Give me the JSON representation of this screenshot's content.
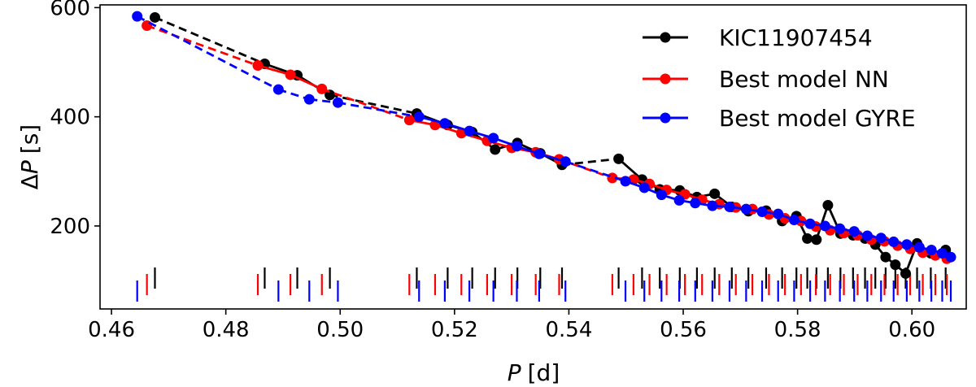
{
  "chart_data": {
    "type": "line",
    "xlabel": {
      "var": "P",
      "unit": "[d]"
    },
    "ylabel": {
      "prefix": "Δ",
      "var": "P",
      "unit": "[s]"
    },
    "xlim": [
      0.458,
      0.6095
    ],
    "ylim": [
      48,
      605
    ],
    "xticks": [
      0.46,
      0.48,
      0.5,
      0.52,
      0.54,
      0.56,
      0.58,
      0.6
    ],
    "xtick_labels": [
      "0.46",
      "0.48",
      "0.50",
      "0.52",
      "0.54",
      "0.56",
      "0.58",
      "0.60"
    ],
    "yticks": [
      200,
      400,
      600
    ],
    "ytick_labels": [
      "200",
      "400",
      "600"
    ],
    "legend_position": "top-right",
    "series": [
      {
        "name": "KIC11907454",
        "color": "#000000",
        "rug_offset": 1,
        "x": [
          0.4676,
          0.4868,
          0.4925,
          0.4982,
          0.5134,
          0.5188,
          0.5231,
          0.5271,
          0.531,
          0.535,
          0.5388,
          0.5487,
          0.5528,
          0.5559,
          0.5594,
          0.5624,
          0.5655,
          0.5685,
          0.5714,
          0.5745,
          0.5773,
          0.5798,
          0.5817,
          0.5833,
          0.5853,
          0.5875,
          0.5897,
          0.5918,
          0.5936,
          0.5954,
          0.5971,
          0.5989,
          0.6009,
          0.6033,
          0.6059
        ],
        "y": [
          582,
          497,
          476,
          440,
          406,
          385,
          372,
          340,
          352,
          333,
          312,
          323,
          285,
          267,
          265,
          253,
          259,
          235,
          227,
          228,
          209,
          218,
          177,
          175,
          238,
          186,
          183,
          177,
          166,
          143,
          129,
          113,
          168,
          150,
          156
        ],
        "dashed_segments": [
          0,
          3,
          10
        ]
      },
      {
        "name": "Best model NN",
        "color": "#ff0000",
        "rug_offset": 0,
        "x": [
          0.4662,
          0.4856,
          0.4913,
          0.4968,
          0.5121,
          0.5166,
          0.5212,
          0.5257,
          0.53,
          0.5342,
          0.5383,
          0.5476,
          0.5513,
          0.5541,
          0.5571,
          0.5603,
          0.5633,
          0.5663,
          0.5692,
          0.5721,
          0.575,
          0.5778,
          0.5806,
          0.5832,
          0.5857,
          0.5881,
          0.5905,
          0.5929,
          0.5952,
          0.5975,
          0.5997,
          0.6019,
          0.6041,
          0.6061
        ],
        "y": [
          567,
          494,
          477,
          451,
          394,
          385,
          370,
          356,
          343,
          335,
          322,
          288,
          285,
          277,
          266,
          258,
          248,
          240,
          234,
          231,
          221,
          214,
          209,
          199,
          192,
          187,
          183,
          175,
          172,
          164,
          158,
          151,
          146,
          140
        ],
        "dashed_segments": [
          0,
          3,
          10
        ]
      },
      {
        "name": "Best model GYRE",
        "color": "#0000ff",
        "rug_offset": -1,
        "x": [
          0.4645,
          0.4892,
          0.4946,
          0.4996,
          0.5138,
          0.5183,
          0.5226,
          0.5268,
          0.5309,
          0.5348,
          0.5394,
          0.5499,
          0.5532,
          0.5562,
          0.5593,
          0.5621,
          0.5651,
          0.5681,
          0.571,
          0.5738,
          0.5766,
          0.5794,
          0.5822,
          0.5848,
          0.5874,
          0.5899,
          0.5922,
          0.5946,
          0.5968,
          0.5991,
          0.6013,
          0.6034,
          0.6053,
          0.6068
        ],
        "y": [
          584,
          450,
          432,
          426,
          400,
          388,
          374,
          361,
          346,
          332,
          318,
          282,
          270,
          257,
          247,
          242,
          237,
          235,
          231,
          226,
          222,
          211,
          204,
          200,
          195,
          190,
          182,
          178,
          171,
          166,
          161,
          156,
          150,
          143
        ],
        "dashed_segments": [
          0,
          1,
          2,
          3,
          10
        ]
      }
    ]
  }
}
